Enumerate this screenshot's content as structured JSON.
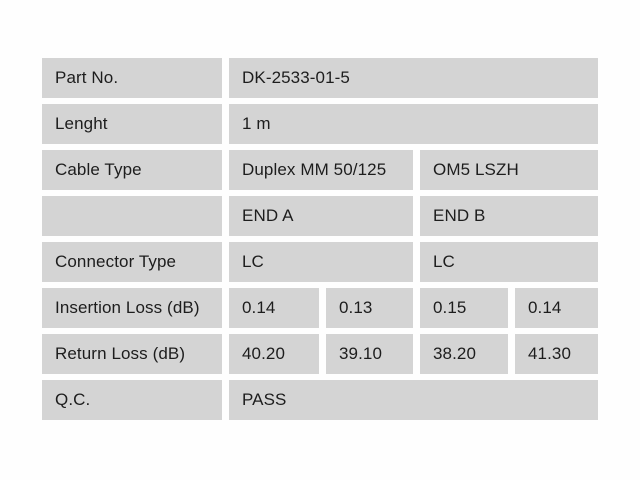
{
  "colors": {
    "page_background": "#ffffff",
    "cell_background": "#d4d4d4",
    "cell_text": "#1d1d1d"
  },
  "table": {
    "rows": [
      {
        "label": "Part No.",
        "values": [
          "DK-2533-01-5"
        ]
      },
      {
        "label": "Lenght",
        "values": [
          "1 m"
        ]
      },
      {
        "label": "Cable Type",
        "values": [
          "Duplex MM 50/125",
          "OM5 LSZH"
        ]
      },
      {
        "label": "",
        "values": [
          "END A",
          "END B"
        ]
      },
      {
        "label": "Connector Type",
        "values": [
          "LC",
          "LC"
        ]
      },
      {
        "label": "Insertion Loss (dB)",
        "values": [
          "0.14",
          "0.13",
          "0.15",
          "0.14"
        ]
      },
      {
        "label": "Return Loss (dB)",
        "values": [
          "40.20",
          "39.10",
          "38.20",
          "41.30"
        ]
      },
      {
        "label": "Q.C.",
        "values": [
          "PASS"
        ]
      }
    ]
  }
}
